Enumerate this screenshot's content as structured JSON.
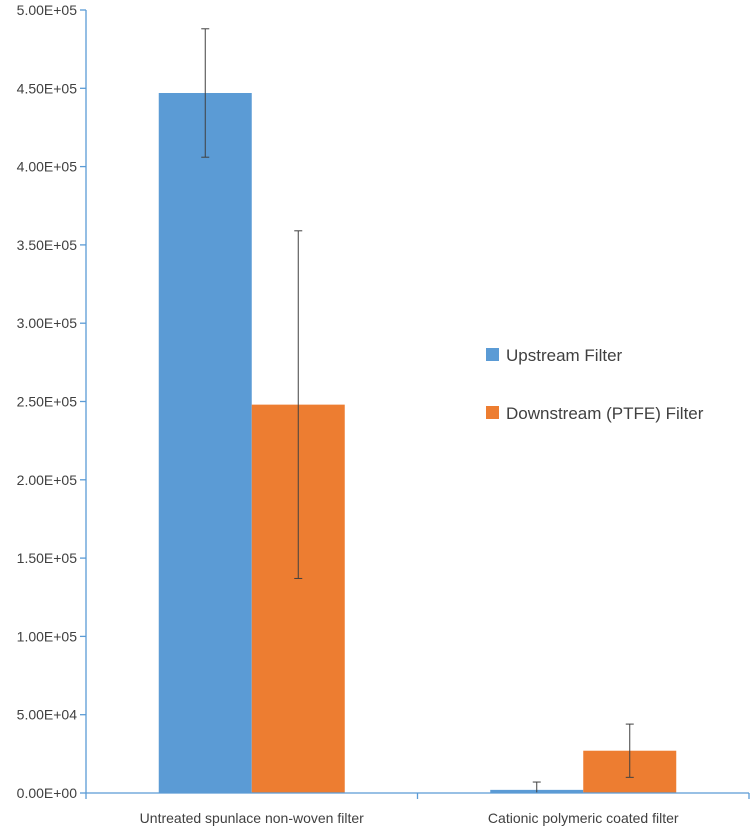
{
  "chart_data": {
    "type": "bar",
    "title": "",
    "xlabel": "",
    "ylabel": "",
    "categories": [
      "Untreated spunlace non-woven filter",
      "Cationic polymeric coated filter"
    ],
    "ylim": [
      0,
      500000
    ],
    "yticks": [
      0,
      50000,
      100000,
      150000,
      200000,
      250000,
      300000,
      350000,
      400000,
      450000,
      500000
    ],
    "ytick_labels": [
      "0.00E+00",
      "5.00E+04",
      "1.00E+05",
      "1.50E+05",
      "2.00E+05",
      "2.50E+05",
      "3.00E+05",
      "3.50E+05",
      "4.00E+05",
      "4.50E+05",
      "5.00E+05"
    ],
    "grid": false,
    "legend_position": "right",
    "series": [
      {
        "name": "Upstream Filter",
        "color": "#5b9bd5",
        "values": [
          447000,
          2000
        ],
        "error": [
          41000,
          5000
        ]
      },
      {
        "name": "Downstream (PTFE) Filter",
        "color": "#ed7d31",
        "values": [
          248000,
          27000
        ],
        "error": [
          111000,
          17000
        ]
      }
    ]
  }
}
